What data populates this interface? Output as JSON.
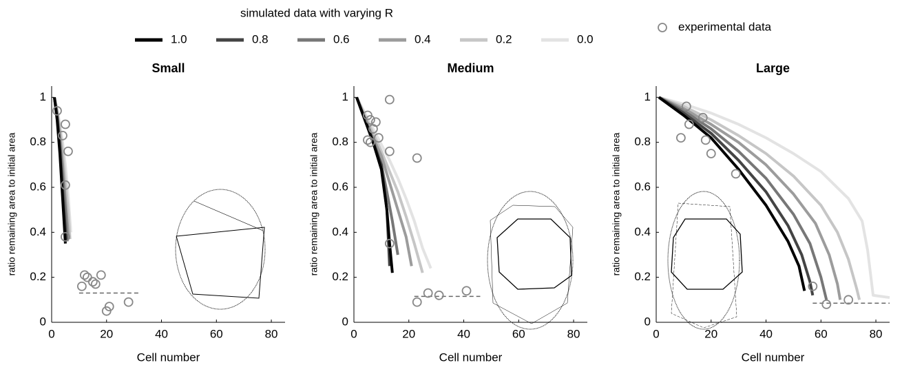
{
  "legend_title": "simulated data with varying R",
  "chart_data": [
    {
      "type": "line",
      "title": "Small",
      "x_label": "Cell number",
      "y_label": "ratio remaining area to initial area",
      "xlim": [
        0,
        85
      ],
      "ylim": [
        0,
        1.05
      ],
      "xticks": [
        0,
        20,
        40,
        60,
        80
      ],
      "yticks": [
        0,
        0.2,
        0.4,
        0.6,
        0.8,
        1
      ],
      "series": [
        {
          "name": "1.0",
          "color": "#000000",
          "x": [
            1,
            2,
            3,
            4,
            5
          ],
          "values": [
            1,
            0.9,
            0.75,
            0.55,
            0.35
          ]
        },
        {
          "name": "0.8",
          "color": "#444444",
          "x": [
            1,
            2,
            3,
            4,
            5.3
          ],
          "values": [
            1,
            0.91,
            0.77,
            0.58,
            0.36
          ]
        },
        {
          "name": "0.6",
          "color": "#777777",
          "x": [
            1,
            2,
            3,
            4,
            5,
            5.7
          ],
          "values": [
            1,
            0.92,
            0.8,
            0.65,
            0.5,
            0.36
          ]
        },
        {
          "name": "0.4",
          "color": "#9c9c9c",
          "x": [
            1,
            2,
            3,
            4,
            5,
            6.2
          ],
          "values": [
            1,
            0.93,
            0.83,
            0.7,
            0.55,
            0.37
          ]
        },
        {
          "name": "0.2",
          "color": "#c6c6c6",
          "x": [
            1,
            2,
            3,
            4,
            5,
            6,
            6.7
          ],
          "values": [
            1,
            0.94,
            0.86,
            0.76,
            0.63,
            0.5,
            0.37
          ]
        },
        {
          "name": "0.0",
          "color": "#e3e3e3",
          "x": [
            1,
            2,
            3,
            4,
            5,
            6,
            7
          ],
          "values": [
            1,
            0.95,
            0.88,
            0.8,
            0.7,
            0.57,
            0.4
          ]
        },
        {
          "name": "experimental data",
          "type": "scatter",
          "color": "#888888",
          "x": [
            2,
            4,
            5,
            5,
            6,
            5,
            12,
            13,
            11,
            15,
            16,
            18,
            20,
            21,
            28
          ],
          "values": [
            0.94,
            0.83,
            0.88,
            0.61,
            0.76,
            0.38,
            0.21,
            0.2,
            0.16,
            0.18,
            0.17,
            0.21,
            0.05,
            0.07,
            0.09
          ]
        }
      ],
      "reference_line": {
        "y": 0.13,
        "x": [
          10,
          32
        ]
      }
    },
    {
      "type": "line",
      "title": "Medium",
      "x_label": "Cell number",
      "y_label": "ratio remaining area to initial area",
      "xlim": [
        0,
        85
      ],
      "ylim": [
        0,
        1.05
      ],
      "xticks": [
        0,
        20,
        40,
        60,
        80
      ],
      "yticks": [
        0,
        0.2,
        0.4,
        0.6,
        0.8,
        1
      ],
      "series": [
        {
          "name": "1.0",
          "color": "#000000",
          "x": [
            1,
            4,
            7,
            10,
            12,
            13,
            14
          ],
          "values": [
            1,
            0.9,
            0.8,
            0.68,
            0.5,
            0.35,
            0.22
          ]
        },
        {
          "name": "0.8",
          "color": "#444444",
          "x": [
            1,
            4,
            7,
            10,
            12,
            13
          ],
          "values": [
            1,
            0.9,
            0.8,
            0.7,
            0.5,
            0.25
          ]
        },
        {
          "name": "0.6",
          "color": "#777777",
          "x": [
            1,
            4,
            7,
            10,
            12,
            14,
            16
          ],
          "values": [
            1,
            0.9,
            0.81,
            0.7,
            0.58,
            0.45,
            0.3
          ]
        },
        {
          "name": "0.4",
          "color": "#9c9c9c",
          "x": [
            1,
            4,
            7,
            10,
            13,
            16,
            19,
            21
          ],
          "values": [
            1,
            0.91,
            0.82,
            0.74,
            0.62,
            0.5,
            0.38,
            0.25
          ]
        },
        {
          "name": "0.2",
          "color": "#c6c6c6",
          "x": [
            1,
            4,
            7,
            10,
            13,
            16,
            19,
            22,
            25
          ],
          "values": [
            1,
            0.92,
            0.84,
            0.76,
            0.67,
            0.58,
            0.47,
            0.35,
            0.22
          ]
        },
        {
          "name": "0.0",
          "color": "#e3e3e3",
          "x": [
            1,
            4,
            7,
            10,
            13,
            16,
            19,
            22,
            25,
            28
          ],
          "values": [
            1,
            0.93,
            0.86,
            0.79,
            0.72,
            0.64,
            0.55,
            0.45,
            0.33,
            0.24
          ]
        },
        {
          "name": "experimental data",
          "type": "scatter",
          "color": "#888888",
          "x": [
            5,
            6,
            7,
            8,
            9,
            5,
            6,
            13,
            13,
            13,
            23,
            23,
            27,
            31,
            41
          ],
          "values": [
            0.92,
            0.9,
            0.86,
            0.89,
            0.82,
            0.81,
            0.8,
            0.99,
            0.76,
            0.35,
            0.73,
            0.09,
            0.13,
            0.12,
            0.14
          ]
        }
      ],
      "reference_line": {
        "y": 0.115,
        "x": [
          22,
          46
        ]
      }
    },
    {
      "type": "line",
      "title": "Large",
      "x_label": "Cell number",
      "y_label": "ratio remaining area to initial area",
      "xlim": [
        0,
        85
      ],
      "ylim": [
        0,
        1.05
      ],
      "xticks": [
        0,
        20,
        40,
        60,
        80
      ],
      "yticks": [
        0,
        0.2,
        0.4,
        0.6,
        0.8,
        1
      ],
      "series": [
        {
          "name": "1.0",
          "color": "#000000",
          "x": [
            1,
            10,
            20,
            30,
            40,
            48,
            52,
            54
          ],
          "values": [
            1,
            0.92,
            0.82,
            0.68,
            0.52,
            0.36,
            0.25,
            0.14
          ]
        },
        {
          "name": "0.8",
          "color": "#444444",
          "x": [
            1,
            10,
            20,
            30,
            40,
            48,
            53,
            56,
            57
          ],
          "values": [
            1,
            0.93,
            0.84,
            0.72,
            0.58,
            0.43,
            0.3,
            0.18,
            0.12
          ]
        },
        {
          "name": "0.6",
          "color": "#777777",
          "x": [
            1,
            10,
            20,
            30,
            40,
            50,
            56,
            60,
            62
          ],
          "values": [
            1,
            0.94,
            0.86,
            0.76,
            0.64,
            0.48,
            0.35,
            0.2,
            0.1
          ]
        },
        {
          "name": "0.4",
          "color": "#9c9c9c",
          "x": [
            1,
            10,
            20,
            30,
            40,
            50,
            58,
            63,
            66,
            67
          ],
          "values": [
            1,
            0.95,
            0.88,
            0.8,
            0.7,
            0.57,
            0.44,
            0.3,
            0.17,
            0.1
          ]
        },
        {
          "name": "0.2",
          "color": "#c6c6c6",
          "x": [
            1,
            10,
            20,
            30,
            40,
            50,
            60,
            66,
            70,
            73,
            74
          ],
          "values": [
            1,
            0.96,
            0.9,
            0.83,
            0.75,
            0.65,
            0.52,
            0.4,
            0.28,
            0.15,
            0.1
          ]
        },
        {
          "name": "0.0",
          "color": "#e3e3e3",
          "x": [
            1,
            10,
            20,
            30,
            40,
            50,
            60,
            70,
            75,
            77,
            79,
            85
          ],
          "values": [
            1,
            0.97,
            0.93,
            0.88,
            0.82,
            0.75,
            0.67,
            0.55,
            0.45,
            0.32,
            0.12,
            0.11
          ]
        },
        {
          "name": "experimental data",
          "type": "scatter",
          "color": "#888888",
          "x": [
            9,
            11,
            12,
            17,
            18,
            20,
            29,
            57,
            62,
            70
          ],
          "values": [
            0.82,
            0.96,
            0.88,
            0.91,
            0.81,
            0.75,
            0.66,
            0.16,
            0.08,
            0.1
          ]
        }
      ],
      "reference_line": {
        "y": 0.085,
        "x": [
          57,
          85
        ]
      }
    }
  ]
}
